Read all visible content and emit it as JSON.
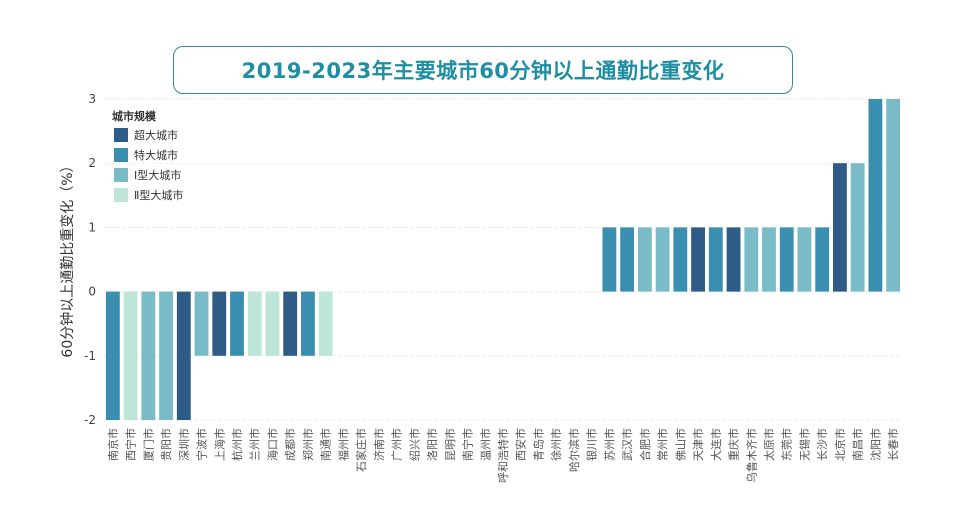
{
  "chart_data": {
    "type": "bar",
    "title": "2019-2023年主要城市60分钟以上通勤比重变化",
    "ylabel": "60分钟以上通勤比重变化（%）",
    "xlabel": "",
    "ylim": [
      -2,
      3
    ],
    "yticks": [
      -2,
      -1,
      0,
      1,
      2,
      3
    ],
    "grid": true,
    "legend": {
      "title": "城市规模",
      "position": "top-left",
      "items": [
        {
          "label": "超大城市",
          "color": "#2f5b87"
        },
        {
          "label": "特大城市",
          "color": "#3a8fb0"
        },
        {
          "label": "Ⅰ型大城市",
          "color": "#79bcc8"
        },
        {
          "label": "Ⅱ型大城市",
          "color": "#bde5d8"
        }
      ]
    },
    "categories": [
      "南京市",
      "西宁市",
      "厦门市",
      "贵阳市",
      "深圳市",
      "宁波市",
      "上海市",
      "杭州市",
      "兰州市",
      "海口市",
      "成都市",
      "郑州市",
      "南通市",
      "福州市",
      "石家庄市",
      "济南市",
      "广州市",
      "绍兴市",
      "洛阳市",
      "昆明市",
      "南宁市",
      "温州市",
      "呼和浩特市",
      "西安市",
      "青岛市",
      "徐州市",
      "哈尔滨市",
      "银川市",
      "苏州市",
      "武汉市",
      "合肥市",
      "常州市",
      "佛山市",
      "天津市",
      "大连市",
      "重庆市",
      "乌鲁木齐市",
      "太原市",
      "东莞市",
      "无锡市",
      "长沙市",
      "北京市",
      "南昌市",
      "沈阳市",
      "长春市"
    ],
    "values": [
      -2,
      -2,
      -2,
      -2,
      -2,
      -1,
      -1,
      -1,
      -1,
      -1,
      -1,
      -1,
      -1,
      0,
      0,
      0,
      0,
      0,
      0,
      0,
      0,
      0,
      0,
      0,
      0,
      0,
      0,
      0,
      1,
      1,
      1,
      1,
      1,
      1,
      1,
      1,
      1,
      1,
      1,
      1,
      1,
      2,
      2,
      3,
      3
    ],
    "sizes": [
      "特大城市",
      "Ⅱ型大城市",
      "Ⅰ型大城市",
      "Ⅰ型大城市",
      "超大城市",
      "Ⅰ型大城市",
      "超大城市",
      "特大城市",
      "Ⅱ型大城市",
      "Ⅱ型大城市",
      "超大城市",
      "特大城市",
      "Ⅱ型大城市",
      "",
      "",
      "",
      "",
      "",
      "",
      "",
      "",
      "",
      "",
      "",
      "",
      "",
      "",
      "",
      "特大城市",
      "特大城市",
      "Ⅰ型大城市",
      "Ⅰ型大城市",
      "特大城市",
      "超大城市",
      "特大城市",
      "超大城市",
      "Ⅰ型大城市",
      "Ⅰ型大城市",
      "特大城市",
      "Ⅰ型大城市",
      "特大城市",
      "超大城市",
      "Ⅰ型大城市",
      "特大城市",
      "Ⅰ型大城市"
    ]
  }
}
